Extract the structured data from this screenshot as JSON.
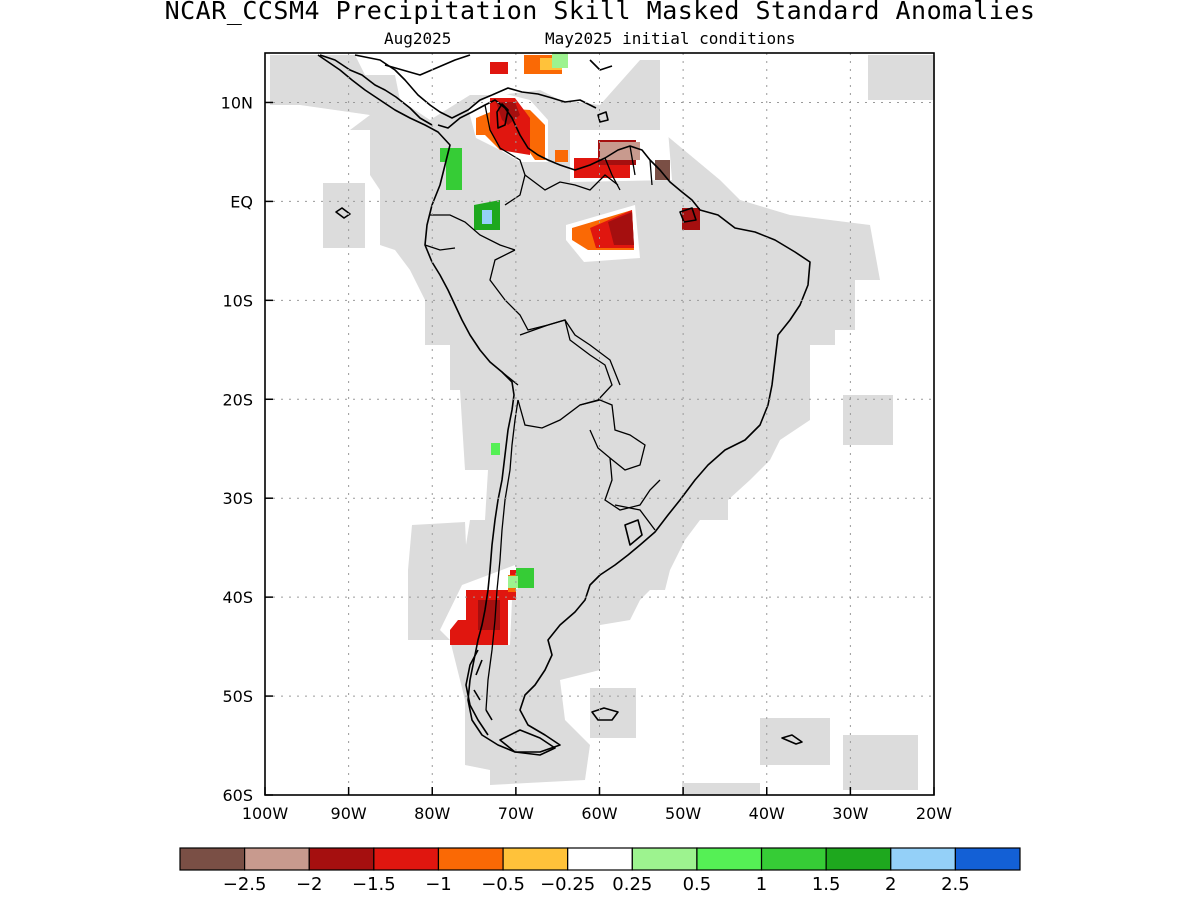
{
  "title": "NCAR_CCSM4 Precipitation Skill Masked Standard Anomalies",
  "subtitle_left": "Aug2025",
  "subtitle_right": "May2025 initial conditions",
  "map": {
    "lon_range": [
      -100,
      -20
    ],
    "lat_range": [
      -60,
      15
    ],
    "lon_ticks": [
      "100W",
      "90W",
      "80W",
      "70W",
      "60W",
      "50W",
      "40W",
      "30W",
      "20W"
    ],
    "lat_ticks": [
      "10N",
      "EQ",
      "10S",
      "20S",
      "30S",
      "40S",
      "50S",
      "60S"
    ],
    "grid": "dotted",
    "mask_color": "#dcdcdc"
  },
  "colorbar": {
    "colors": [
      "#7a4f45",
      "#c89a8e",
      "#a50f0f",
      "#e0160f",
      "#fa6905",
      "#ffc23a",
      "#ffffff",
      "#9df38f",
      "#55f055",
      "#36cc36",
      "#1ea81e",
      "#94d0f8",
      "#1360d6"
    ],
    "labels": [
      "−2.5",
      "−2",
      "−1.5",
      "−1",
      "−0.5",
      "−0.25",
      "0.25",
      "0.5",
      "1",
      "1.5",
      "2",
      "2.5"
    ]
  },
  "anomaly_regions": [
    {
      "name": "Patagonia",
      "lon": [
        -76,
        -71
      ],
      "lat": [
        -44,
        -38
      ],
      "value": -1.5
    },
    {
      "name": "Colombia-Venezuela",
      "lon": [
        -73,
        -69
      ],
      "lat": [
        7,
        12
      ],
      "value": -1.5
    },
    {
      "name": "Guyana",
      "lon": [
        -62,
        -57
      ],
      "lat": [
        5,
        7
      ],
      "value": -2
    },
    {
      "name": "Amazon",
      "lon": [
        -63,
        -56
      ],
      "lat": [
        -4,
        0
      ],
      "value": -1.5
    },
    {
      "name": "Pacific Colombia",
      "lon": [
        -77,
        -75
      ],
      "lat": [
        5,
        8
      ],
      "value": 1
    },
    {
      "name": "Southern Colombia",
      "lon": [
        -75,
        -72
      ],
      "lat": [
        -2,
        1
      ],
      "value": 1.5
    },
    {
      "name": "Argentina",
      "lon": [
        -71,
        -69
      ],
      "lat": [
        -38,
        -36
      ],
      "value": 1
    },
    {
      "name": "Northern Chile",
      "lon": [
        -72,
        -71
      ],
      "lat": [
        -25,
        -24
      ],
      "value": 0.5
    }
  ]
}
